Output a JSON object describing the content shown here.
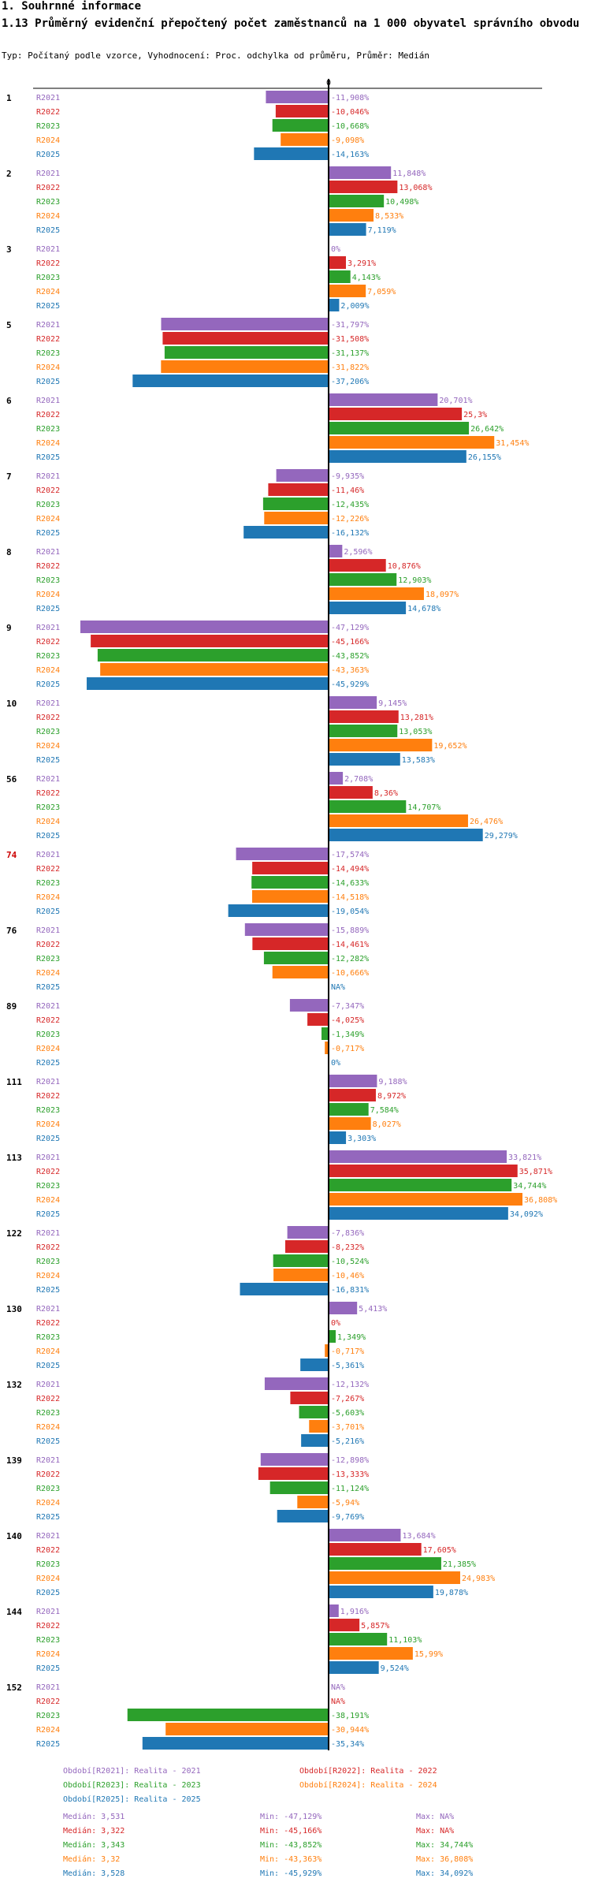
{
  "header": {
    "section": "1. Souhrnné informace",
    "title": "1.13 Průměrný evidenční přepočtený počet zaměstnanců na 1 000 obyvatel správního obvodu",
    "subtitle": "Typ: Počítaný podle vzorce, Vyhodnocení: Proc. odchylka od průměru, Průměr: Medián"
  },
  "colors": {
    "R2021": "#9467bd",
    "R2022": "#d62728",
    "R2023": "#2ca02c",
    "R2024": "#ff7f0e",
    "R2025": "#1f77b4",
    "highlight": "#cc0000"
  },
  "chart_data": {
    "type": "bar",
    "orientation": "horizontal",
    "zero_label": "0",
    "unit": "%",
    "xlim": [
      -47.129,
      36.808
    ],
    "series_names": [
      "R2021",
      "R2022",
      "R2023",
      "R2024",
      "R2025"
    ],
    "groups": [
      {
        "id": "1",
        "values": [
          -11.908,
          -10.046,
          -10.668,
          -9.098,
          -14.163
        ],
        "labels": [
          "-11,908%",
          "-10,046%",
          "-10,668%",
          "-9,098%",
          "-14,163%"
        ]
      },
      {
        "id": "2",
        "values": [
          11.848,
          13.068,
          10.498,
          8.533,
          7.119
        ],
        "labels": [
          "11,848%",
          "13,068%",
          "10,498%",
          "8,533%",
          "7,119%"
        ]
      },
      {
        "id": "3",
        "values": [
          0,
          3.291,
          4.143,
          7.059,
          2.009
        ],
        "labels": [
          "0%",
          "3,291%",
          "4,143%",
          "7,059%",
          "2,009%"
        ]
      },
      {
        "id": "5",
        "values": [
          -31.797,
          -31.508,
          -31.137,
          -31.822,
          -37.206
        ],
        "labels": [
          "-31,797%",
          "-31,508%",
          "-31,137%",
          "-31,822%",
          "-37,206%"
        ]
      },
      {
        "id": "6",
        "values": [
          20.701,
          25.3,
          26.642,
          31.454,
          26.155
        ],
        "labels": [
          "20,701%",
          "25,3%",
          "26,642%",
          "31,454%",
          "26,155%"
        ]
      },
      {
        "id": "7",
        "values": [
          -9.935,
          -11.46,
          -12.435,
          -12.226,
          -16.132
        ],
        "labels": [
          "-9,935%",
          "-11,46%",
          "-12,435%",
          "-12,226%",
          "-16,132%"
        ]
      },
      {
        "id": "8",
        "values": [
          2.596,
          10.876,
          12.903,
          18.097,
          14.678
        ],
        "labels": [
          "2,596%",
          "10,876%",
          "12,903%",
          "18,097%",
          "14,678%"
        ]
      },
      {
        "id": "9",
        "values": [
          -47.129,
          -45.166,
          -43.852,
          -43.363,
          -45.929
        ],
        "labels": [
          "-47,129%",
          "-45,166%",
          "-43,852%",
          "-43,363%",
          "-45,929%"
        ]
      },
      {
        "id": "10",
        "values": [
          9.145,
          13.281,
          13.053,
          19.652,
          13.583
        ],
        "labels": [
          "9,145%",
          "13,281%",
          "13,053%",
          "19,652%",
          "13,583%"
        ]
      },
      {
        "id": "56",
        "values": [
          2.708,
          8.36,
          14.707,
          26.476,
          29.279
        ],
        "labels": [
          "2,708%",
          "8,36%",
          "14,707%",
          "26,476%",
          "29,279%"
        ]
      },
      {
        "id": "74",
        "highlight": true,
        "values": [
          -17.574,
          -14.494,
          -14.633,
          -14.518,
          -19.054
        ],
        "labels": [
          "-17,574%",
          "-14,494%",
          "-14,633%",
          "-14,518%",
          "-19,054%"
        ]
      },
      {
        "id": "76",
        "values": [
          -15.889,
          -14.461,
          -12.282,
          -10.666,
          null
        ],
        "labels": [
          "-15,889%",
          "-14,461%",
          "-12,282%",
          "-10,666%",
          "NA%"
        ]
      },
      {
        "id": "89",
        "values": [
          -7.347,
          -4.025,
          -1.349,
          -0.717,
          0
        ],
        "labels": [
          "-7,347%",
          "-4,025%",
          "-1,349%",
          "-0,717%",
          "0%"
        ]
      },
      {
        "id": "111",
        "values": [
          9.188,
          8.972,
          7.584,
          8.027,
          3.303
        ],
        "labels": [
          "9,188%",
          "8,972%",
          "7,584%",
          "8,027%",
          "3,303%"
        ]
      },
      {
        "id": "113",
        "values": [
          33.821,
          35.871,
          34.744,
          36.808,
          34.092
        ],
        "labels": [
          "33,821%",
          "35,871%",
          "34,744%",
          "36,808%",
          "34,092%"
        ]
      },
      {
        "id": "122",
        "values": [
          -7.836,
          -8.232,
          -10.524,
          -10.46,
          -16.831
        ],
        "labels": [
          "-7,836%",
          "-8,232%",
          "-10,524%",
          "-10,46%",
          "-16,831%"
        ]
      },
      {
        "id": "130",
        "values": [
          5.413,
          0,
          1.349,
          -0.717,
          -5.361
        ],
        "labels": [
          "5,413%",
          "0%",
          "1,349%",
          "-0,717%",
          "-5,361%"
        ]
      },
      {
        "id": "132",
        "values": [
          -12.132,
          -7.267,
          -5.603,
          -3.701,
          -5.216
        ],
        "labels": [
          "-12,132%",
          "-7,267%",
          "-5,603%",
          "-3,701%",
          "-5,216%"
        ]
      },
      {
        "id": "139",
        "values": [
          -12.898,
          -13.333,
          -11.124,
          -5.94,
          -9.769
        ],
        "labels": [
          "-12,898%",
          "-13,333%",
          "-11,124%",
          "-5,94%",
          "-9,769%"
        ]
      },
      {
        "id": "140",
        "values": [
          13.684,
          17.605,
          21.385,
          24.983,
          19.878
        ],
        "labels": [
          "13,684%",
          "17,605%",
          "21,385%",
          "24,983%",
          "19,878%"
        ]
      },
      {
        "id": "144",
        "values": [
          1.916,
          5.857,
          11.103,
          15.99,
          9.524
        ],
        "labels": [
          "1,916%",
          "5,857%",
          "11,103%",
          "15,99%",
          "9,524%"
        ]
      },
      {
        "id": "152",
        "values": [
          null,
          null,
          -38.191,
          -30.944,
          -35.34
        ],
        "labels": [
          "NA%",
          "NA%",
          "-38,191%",
          "-30,944%",
          "-35,34%"
        ]
      }
    ],
    "legend": [
      "Období[R2021]: Realita - 2021",
      "Období[R2022]: Realita - 2022",
      "Období[R2023]: Realita - 2023",
      "Období[R2024]: Realita - 2024",
      "Období[R2025]: Realita - 2025"
    ],
    "stats": [
      {
        "median": "Medián: 3,531",
        "min": "Min: -47,129%",
        "max": "Max: NA%"
      },
      {
        "median": "Medián: 3,322",
        "min": "Min: -45,166%",
        "max": "Max: NA%"
      },
      {
        "median": "Medián: 3,343",
        "min": "Min: -43,852%",
        "max": "Max: 34,744%"
      },
      {
        "median": "Medián: 3,32",
        "min": "Min: -43,363%",
        "max": "Max: 36,808%"
      },
      {
        "median": "Medián: 3,528",
        "min": "Min: -45,929%",
        "max": "Max: 34,092%"
      }
    ]
  }
}
